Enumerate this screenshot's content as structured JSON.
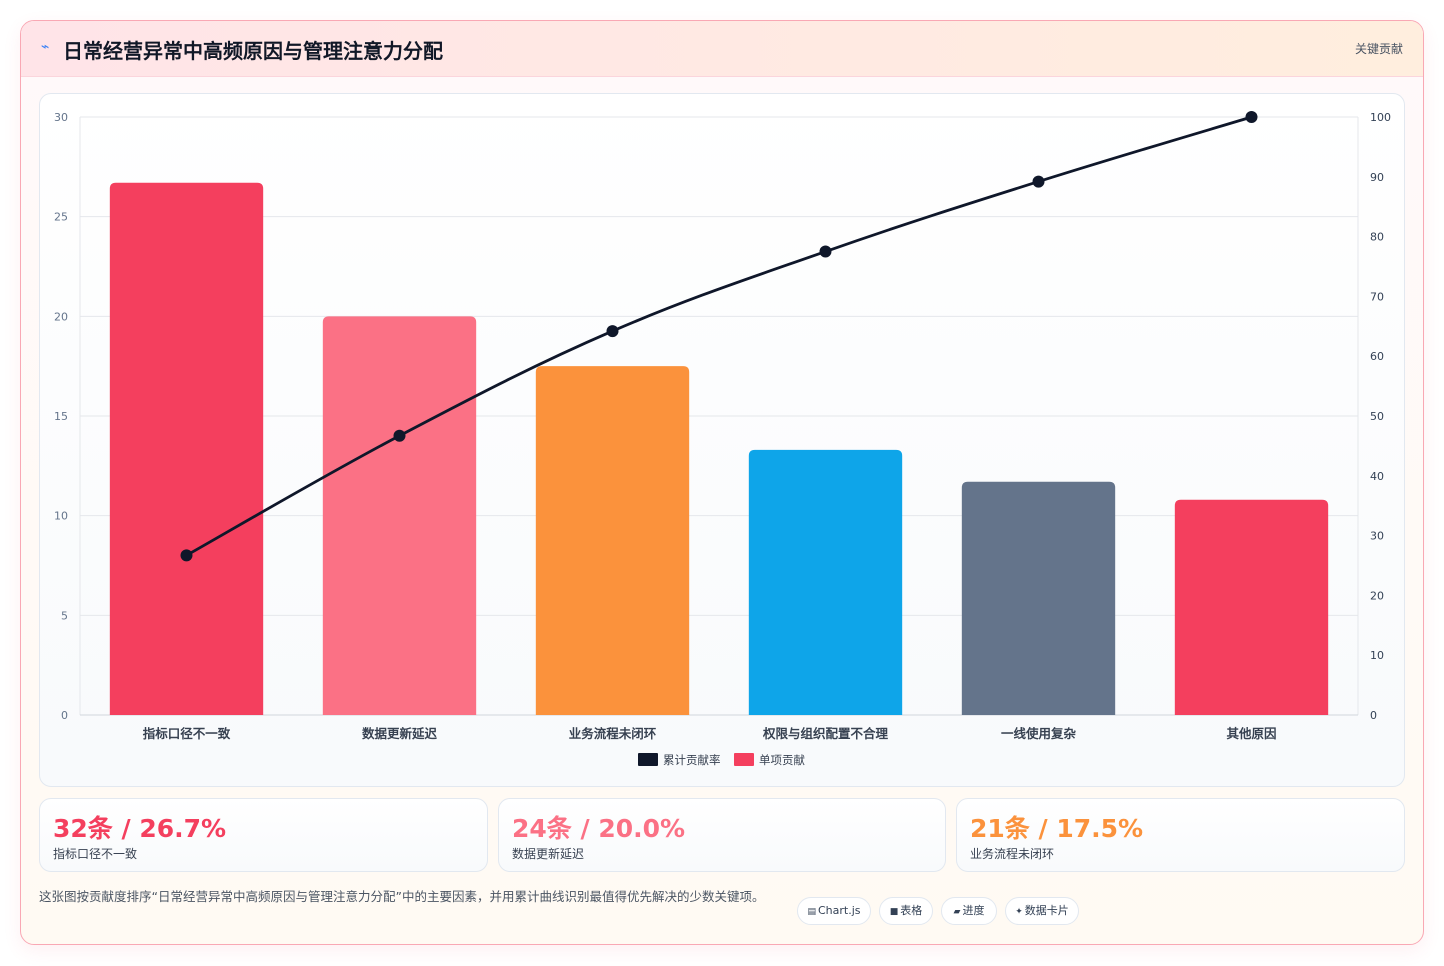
{
  "header": {
    "icon": "chart-trend-icon",
    "title": "日常经营异常中高频原因与管理注意力分配",
    "tag": "关键贡献"
  },
  "chart_data": {
    "type": "bar",
    "categories": [
      "指标口径不一致",
      "数据更新延迟",
      "业务流程未闭环",
      "权限与组织配置不合理",
      "一线使用复杂",
      "其他原因"
    ],
    "series": [
      {
        "name": "单项贡献",
        "type": "bar",
        "axis": "left",
        "values": [
          26.7,
          20.0,
          17.5,
          13.3,
          11.7,
          10.8
        ],
        "colors": [
          "#f43f5e",
          "#fb7185",
          "#fb923c",
          "#0ea5e9",
          "#64748b",
          "#f43f5e"
        ]
      },
      {
        "name": "累计贡献率",
        "type": "line",
        "axis": "right",
        "values": [
          26.7,
          46.7,
          64.2,
          77.5,
          89.2,
          100.0
        ],
        "color": "#0f172a"
      }
    ],
    "left_axis": {
      "min": 0,
      "max": 30,
      "ticks": [
        "0",
        "5",
        "10",
        "15",
        "20",
        "25",
        "30"
      ]
    },
    "right_axis": {
      "min": 0,
      "max": 100,
      "ticks": [
        "0",
        "10",
        "20",
        "30",
        "40",
        "50",
        "60",
        "70",
        "80",
        "90",
        "100"
      ]
    },
    "legend": {
      "position": "bottom",
      "items": [
        {
          "label": "累计贡献率",
          "color": "#0f172a"
        },
        {
          "label": "单项贡献",
          "color": "#f43f5e"
        }
      ]
    },
    "grid": true
  },
  "stats": [
    {
      "value": "32条 / 26.7%",
      "label": "指标口径不一致",
      "color": "#f43f5e"
    },
    {
      "value": "24条 / 20.0%",
      "label": "数据更新延迟",
      "color": "#fb7185"
    },
    {
      "value": "21条 / 17.5%",
      "label": "业务流程未闭环",
      "color": "#fb923c"
    }
  ],
  "footer": {
    "description": "这张图按贡献度排序“日常经营异常中高频原因与管理注意力分配”中的主要因素，并用累计曲线识别最值得优先解决的少数关键项。",
    "chips": [
      {
        "icon": "chart-icon",
        "glyph": "▤",
        "label": "Chart.js"
      },
      {
        "icon": "table-icon",
        "glyph": "■",
        "label": "表格"
      },
      {
        "icon": "progress-icon",
        "glyph": "▰",
        "label": "进度"
      },
      {
        "icon": "card-icon",
        "glyph": "✦",
        "label": "数据卡片"
      }
    ]
  }
}
